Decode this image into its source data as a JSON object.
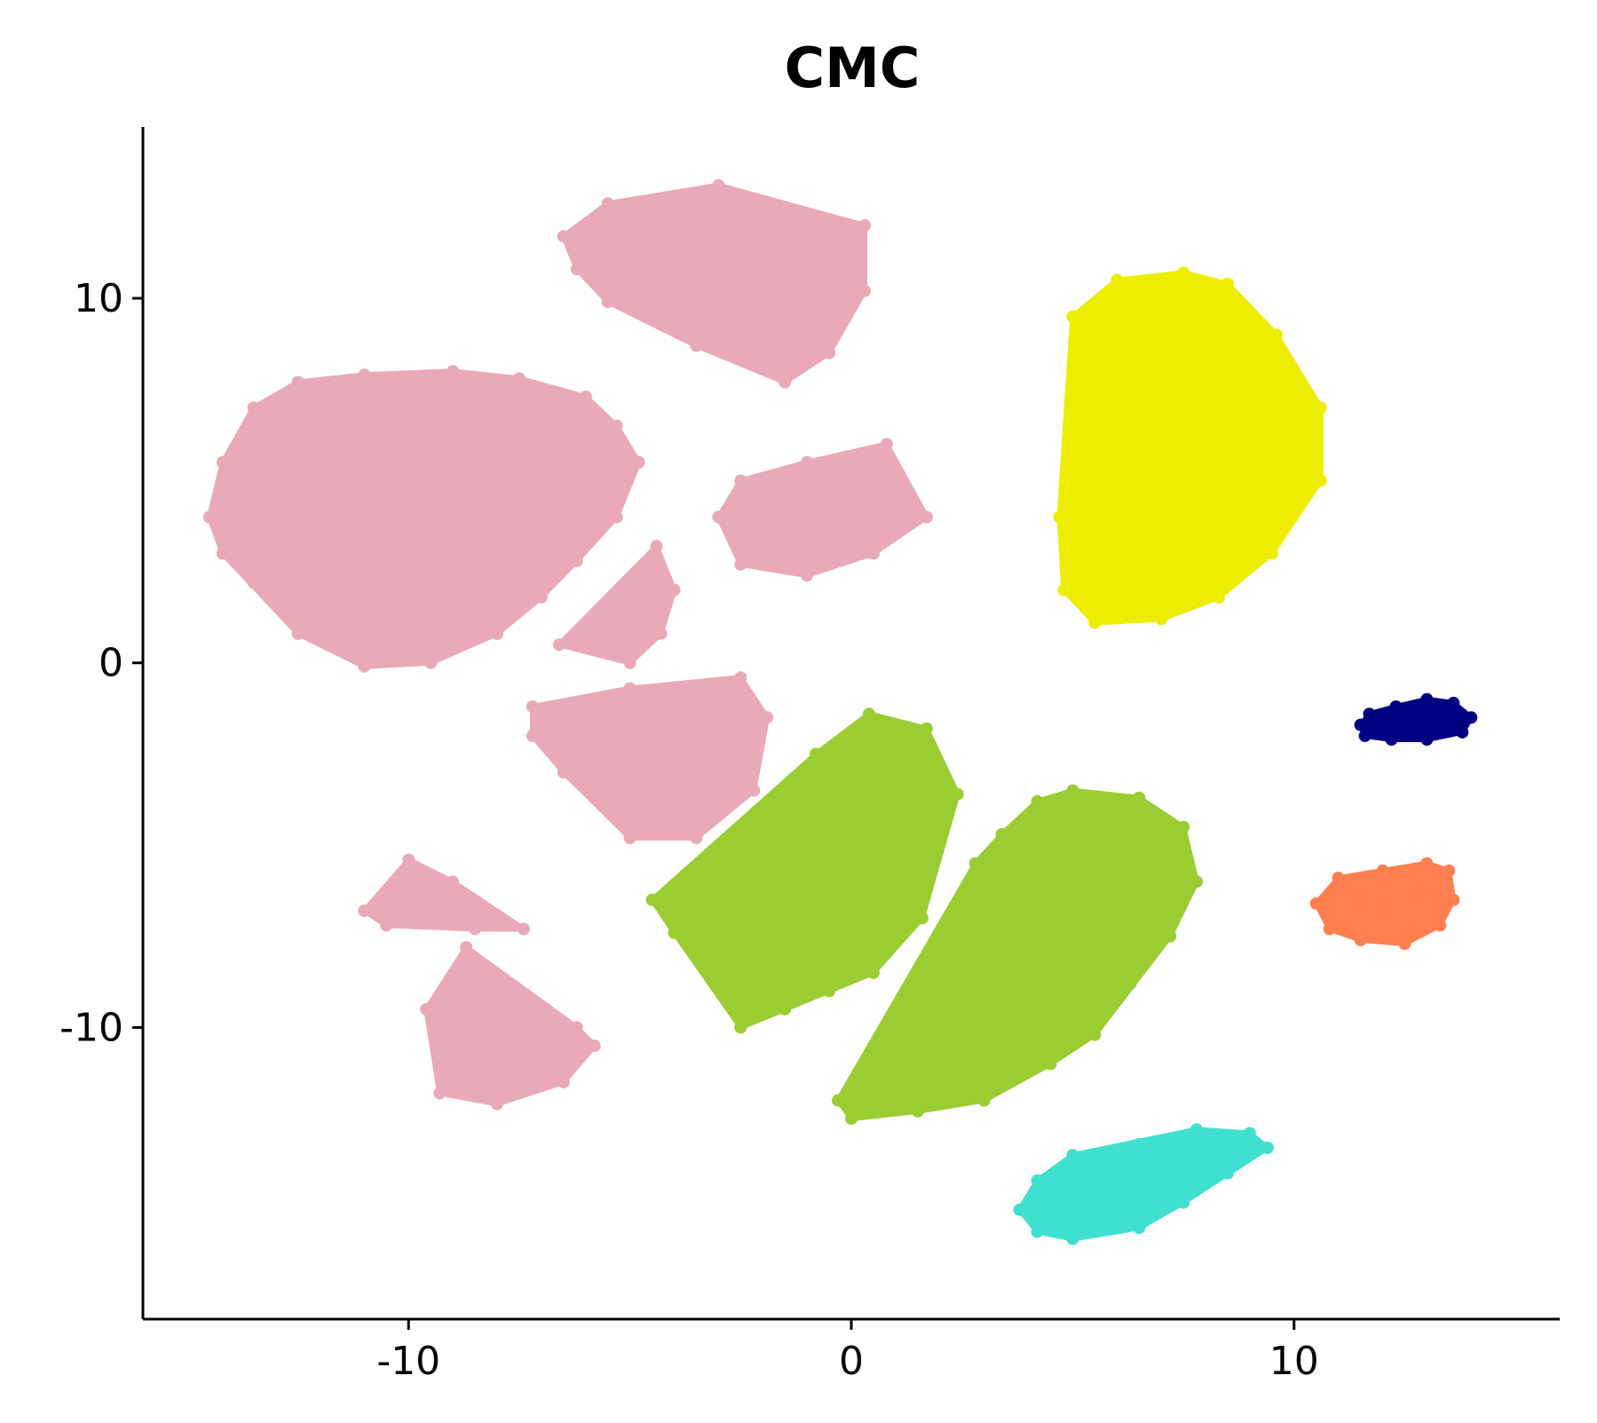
{
  "chart_data": {
    "type": "scatter",
    "title": "CMC",
    "xlabel": "",
    "ylabel": "",
    "xlim": [
      -16,
      16
    ],
    "ylim": [
      -18,
      14.7
    ],
    "xticks": [
      {
        "value": -10,
        "label": "-10"
      },
      {
        "value": 0,
        "label": "0"
      },
      {
        "value": 10,
        "label": "10"
      }
    ],
    "yticks": [
      {
        "value": 10,
        "label": "10"
      },
      {
        "value": 0,
        "label": "0"
      },
      {
        "value": -10,
        "label": "-10"
      }
    ],
    "grid": false,
    "legend": "none",
    "clusters": [
      {
        "color": "#EAA9B6",
        "points": [
          [
            -14.5,
            4.0
          ],
          [
            -14.2,
            5.5
          ],
          [
            -13.5,
            7.0
          ],
          [
            -12.5,
            7.7
          ],
          [
            -11.0,
            7.9
          ],
          [
            -9.0,
            8.0
          ],
          [
            -7.5,
            7.8
          ],
          [
            -6.0,
            7.3
          ],
          [
            -5.3,
            6.5
          ],
          [
            -4.8,
            5.5
          ],
          [
            -5.3,
            4.0
          ],
          [
            -6.2,
            2.8
          ],
          [
            -7.0,
            1.8
          ],
          [
            -8.0,
            0.8
          ],
          [
            -9.5,
            0.0
          ],
          [
            -11.0,
            -0.1
          ],
          [
            -12.5,
            0.8
          ],
          [
            -13.5,
            2.2
          ],
          [
            -14.2,
            3.0
          ],
          [
            -12.0,
            5.0
          ],
          [
            -10.0,
            4.0
          ],
          [
            -8.0,
            5.0
          ],
          [
            -10.5,
            2.0
          ],
          [
            -9.0,
            6.5
          ],
          [
            -7.0,
            4.0
          ],
          [
            -11.5,
            6.5
          ],
          [
            -13.0,
            4.5
          ]
        ]
      },
      {
        "color": "#EAA9B6",
        "points": [
          [
            -4.4,
            3.2
          ],
          [
            -4.9,
            2.0
          ],
          [
            -5.8,
            1.0
          ],
          [
            -6.6,
            0.5
          ],
          [
            -5.0,
            0.0
          ],
          [
            -4.3,
            0.8
          ],
          [
            -4.0,
            2.0
          ],
          [
            -5.0,
            1.5
          ]
        ]
      },
      {
        "color": "#EAA9B6",
        "points": [
          [
            -6.5,
            11.7
          ],
          [
            -5.5,
            12.6
          ],
          [
            -3.0,
            13.1
          ],
          [
            -1.5,
            12.5
          ],
          [
            0.3,
            12.0
          ],
          [
            0.3,
            10.2
          ],
          [
            -0.5,
            8.5
          ],
          [
            -1.5,
            7.7
          ],
          [
            -3.5,
            8.7
          ],
          [
            -5.5,
            9.9
          ],
          [
            -6.2,
            10.8
          ],
          [
            -4.0,
            11.0
          ],
          [
            -2.0,
            11.5
          ],
          [
            -1.0,
            9.5
          ]
        ]
      },
      {
        "color": "#EAA9B6",
        "points": [
          [
            -3.0,
            4.0
          ],
          [
            -2.5,
            5.0
          ],
          [
            -1.0,
            5.5
          ],
          [
            0.8,
            6.0
          ],
          [
            1.7,
            4.0
          ],
          [
            0.5,
            3.0
          ],
          [
            -1.0,
            2.4
          ],
          [
            -2.5,
            2.7
          ],
          [
            -0.5,
            4.5
          ],
          [
            0.5,
            5.0
          ],
          [
            -1.5,
            3.5
          ]
        ]
      },
      {
        "color": "#EAA9B6",
        "points": [
          [
            -7.2,
            -1.2
          ],
          [
            -5.0,
            -0.7
          ],
          [
            -2.5,
            -0.4
          ],
          [
            -1.9,
            -1.5
          ],
          [
            -2.2,
            -3.5
          ],
          [
            -3.5,
            -4.8
          ],
          [
            -5.0,
            -4.8
          ],
          [
            -6.5,
            -3.0
          ],
          [
            -7.2,
            -2.0
          ],
          [
            -4.0,
            -2.0
          ],
          [
            -3.0,
            -3.0
          ],
          [
            -5.5,
            -2.5
          ]
        ]
      },
      {
        "color": "#EAA9B6",
        "points": [
          [
            -10.0,
            -5.4
          ],
          [
            -9.0,
            -6.0
          ],
          [
            -8.3,
            -6.7
          ],
          [
            -7.4,
            -7.3
          ],
          [
            -8.5,
            -7.3
          ],
          [
            -11.0,
            -6.8
          ],
          [
            -10.5,
            -7.2
          ]
        ]
      },
      {
        "color": "#EAA9B6",
        "points": [
          [
            -9.6,
            -9.5
          ],
          [
            -8.5,
            -9.6
          ],
          [
            -7.5,
            -9.5
          ],
          [
            -6.2,
            -10.0
          ],
          [
            -5.8,
            -10.5
          ],
          [
            -6.5,
            -11.5
          ],
          [
            -8.0,
            -12.1
          ],
          [
            -9.3,
            -11.8
          ],
          [
            -9.0,
            -10.5
          ],
          [
            -8.0,
            -10.8
          ],
          [
            -7.0,
            -11.0
          ],
          [
            -8.7,
            -7.8
          ]
        ]
      },
      {
        "color": "#EDED00",
        "points": [
          [
            5.0,
            9.5
          ],
          [
            6.0,
            10.5
          ],
          [
            7.5,
            10.7
          ],
          [
            8.5,
            10.4
          ],
          [
            9.6,
            9.0
          ],
          [
            10.6,
            7.0
          ],
          [
            10.6,
            5.0
          ],
          [
            9.5,
            3.0
          ],
          [
            8.3,
            1.8
          ],
          [
            7.0,
            1.2
          ],
          [
            5.5,
            1.1
          ],
          [
            4.8,
            2.0
          ],
          [
            4.7,
            4.0
          ],
          [
            4.9,
            6.0
          ],
          [
            5.0,
            8.0
          ],
          [
            7.5,
            6.0
          ],
          [
            6.0,
            4.0
          ],
          [
            8.5,
            4.5
          ],
          [
            6.5,
            8.5
          ],
          [
            8.5,
            8.0
          ],
          [
            6.0,
            2.5
          ],
          [
            9.5,
            6.0
          ],
          [
            7.5,
            9.5
          ],
          [
            5.8,
            6.0
          ]
        ]
      },
      {
        "color": "#9ACD32",
        "points": [
          [
            -4.5,
            -6.5
          ],
          [
            -3.0,
            -5.9
          ],
          [
            -1.5,
            -4.7
          ],
          [
            -0.8,
            -2.5
          ],
          [
            0.4,
            -1.4
          ],
          [
            1.7,
            -1.8
          ],
          [
            2.4,
            -3.6
          ],
          [
            1.5,
            -5.0
          ],
          [
            1.6,
            -7.0
          ],
          [
            0.5,
            -7.6
          ],
          [
            -1.5,
            -8.1
          ],
          [
            -3.0,
            -8.0
          ],
          [
            -4.0,
            -7.4
          ],
          [
            -0.5,
            -3.5
          ],
          [
            0.5,
            -4.5
          ],
          [
            -2.0,
            -6.5
          ],
          [
            0.0,
            -6.5
          ],
          [
            1.0,
            -2.5
          ],
          [
            -2.5,
            -10.0
          ],
          [
            -1.5,
            -9.5
          ],
          [
            -0.5,
            -9.0
          ],
          [
            0.5,
            -8.5
          ],
          [
            -1.0,
            -8.8
          ]
        ]
      },
      {
        "color": "#9ACD32",
        "points": [
          [
            2.8,
            -5.5
          ],
          [
            3.4,
            -4.7
          ],
          [
            4.2,
            -3.8
          ],
          [
            5.0,
            -3.5
          ],
          [
            6.5,
            -3.7
          ],
          [
            7.5,
            -4.5
          ],
          [
            7.8,
            -6.0
          ],
          [
            7.2,
            -7.5
          ],
          [
            6.3,
            -8.8
          ],
          [
            5.5,
            -10.2
          ],
          [
            4.5,
            -11.0
          ],
          [
            3.0,
            -12.0
          ],
          [
            1.5,
            -12.3
          ],
          [
            0.0,
            -12.5
          ],
          [
            -0.3,
            -12.0
          ],
          [
            1.0,
            -11.2
          ],
          [
            2.5,
            -10.3
          ],
          [
            3.5,
            -9.8
          ],
          [
            3.2,
            -8.0
          ],
          [
            3.0,
            -6.5
          ],
          [
            5.0,
            -5.0
          ],
          [
            6.0,
            -6.5
          ],
          [
            4.5,
            -7.0
          ],
          [
            5.5,
            -8.0
          ],
          [
            4.0,
            -9.0
          ],
          [
            2.0,
            -11.0
          ],
          [
            3.5,
            -11.0
          ],
          [
            6.5,
            -5.5
          ],
          [
            4.0,
            -5.5
          ]
        ]
      },
      {
        "color": "#000080",
        "points": [
          [
            11.5,
            -1.7
          ],
          [
            11.7,
            -1.4
          ],
          [
            12.3,
            -1.2
          ],
          [
            13.0,
            -1.0
          ],
          [
            13.6,
            -1.1
          ],
          [
            14.0,
            -1.5
          ],
          [
            13.8,
            -1.9
          ],
          [
            13.0,
            -2.1
          ],
          [
            12.2,
            -2.1
          ],
          [
            11.6,
            -2.0
          ],
          [
            12.8,
            -1.6
          ],
          [
            13.3,
            -1.5
          ]
        ]
      },
      {
        "color": "#FF7F50",
        "points": [
          [
            10.5,
            -6.6
          ],
          [
            11.0,
            -5.9
          ],
          [
            12.0,
            -5.7
          ],
          [
            13.0,
            -5.5
          ],
          [
            13.5,
            -5.7
          ],
          [
            13.6,
            -6.5
          ],
          [
            13.3,
            -7.2
          ],
          [
            12.5,
            -7.7
          ],
          [
            11.5,
            -7.6
          ],
          [
            10.8,
            -7.3
          ],
          [
            12.0,
            -6.7
          ],
          [
            12.8,
            -6.3
          ],
          [
            11.5,
            -6.5
          ]
        ]
      },
      {
        "color": "#40E0D0",
        "points": [
          [
            3.8,
            -15.0
          ],
          [
            4.2,
            -14.2
          ],
          [
            5.0,
            -13.5
          ],
          [
            6.5,
            -13.2
          ],
          [
            7.8,
            -12.8
          ],
          [
            9.0,
            -12.9
          ],
          [
            9.4,
            -13.3
          ],
          [
            8.5,
            -14.0
          ],
          [
            7.5,
            -14.8
          ],
          [
            6.5,
            -15.5
          ],
          [
            5.0,
            -15.8
          ],
          [
            4.2,
            -15.6
          ],
          [
            5.5,
            -14.5
          ],
          [
            6.5,
            -14.2
          ],
          [
            7.5,
            -13.5
          ],
          [
            4.8,
            -15.0
          ],
          [
            6.0,
            -15.2
          ]
        ]
      }
    ]
  }
}
